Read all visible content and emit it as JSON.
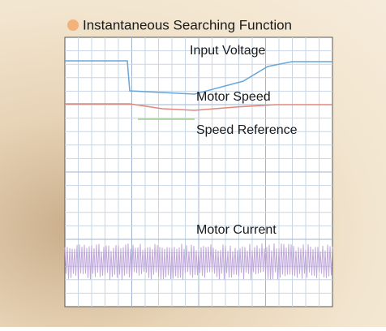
{
  "figure": {
    "title": "Instantaneous Searching Function",
    "traces": [
      {
        "label": "Input Voltage"
      },
      {
        "label": "Motor Speed"
      },
      {
        "label": "Speed Reference"
      },
      {
        "label": "Motor Current"
      }
    ]
  }
}
